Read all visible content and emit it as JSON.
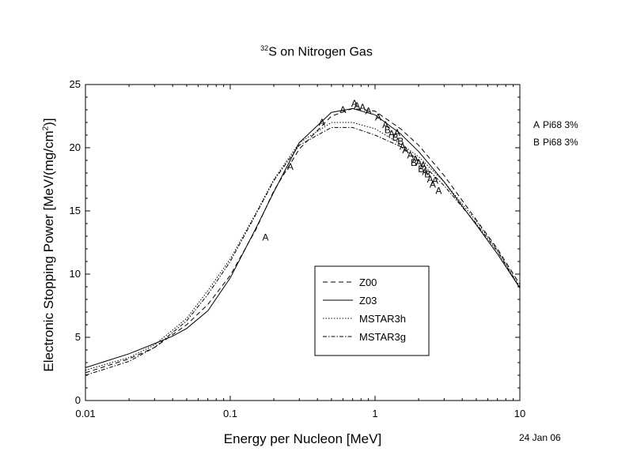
{
  "chart_data": {
    "type": "line",
    "title_sup": "32",
    "title_main": "S on Nitrogen Gas",
    "xlabel": "Energy per Nucleon [MeV]",
    "ylabel_main": "Electronic Stopping Power [MeV/(mg/cm",
    "ylabel_sup": "2",
    "ylabel_end": ")]",
    "xscale": "log",
    "xlim": [
      0.01,
      10
    ],
    "ylim": [
      0,
      25
    ],
    "x_ticks": [
      {
        "v": 0.01,
        "label": "0.01"
      },
      {
        "v": 0.1,
        "label": "0.1"
      },
      {
        "v": 1,
        "label": "1"
      },
      {
        "v": 10,
        "label": "10"
      }
    ],
    "y_ticks": [
      {
        "v": 0,
        "label": "0"
      },
      {
        "v": 5,
        "label": "5"
      },
      {
        "v": 10,
        "label": "10"
      },
      {
        "v": 15,
        "label": "15"
      },
      {
        "v": 20,
        "label": "20"
      },
      {
        "v": 25,
        "label": "25"
      }
    ],
    "grid": false,
    "legend_position": "center-right",
    "series": [
      {
        "name": "Z00",
        "dash": "6,4",
        "x": [
          0.01,
          0.02,
          0.03,
          0.05,
          0.07,
          0.1,
          0.15,
          0.2,
          0.3,
          0.5,
          0.7,
          1,
          1.5,
          2,
          3,
          5,
          7,
          10
        ],
        "y": [
          2.2,
          3.3,
          4.2,
          6.0,
          7.6,
          9.9,
          13.5,
          16.6,
          19.9,
          22.5,
          23.1,
          22.9,
          21.5,
          20.2,
          17.8,
          14.3,
          12.0,
          9.2
        ]
      },
      {
        "name": "Z03",
        "dash": "",
        "x": [
          0.01,
          0.02,
          0.03,
          0.04,
          0.05,
          0.07,
          0.1,
          0.15,
          0.2,
          0.3,
          0.5,
          0.7,
          1,
          1.5,
          2,
          3,
          5,
          7,
          10
        ],
        "y": [
          2.6,
          3.7,
          4.5,
          5.1,
          5.7,
          7.1,
          9.7,
          13.6,
          16.5,
          20.4,
          22.8,
          23.1,
          22.6,
          21.1,
          19.7,
          17.3,
          13.9,
          11.6,
          8.9
        ]
      },
      {
        "name": "MSTAR3h",
        "dash": "1.5,2",
        "x": [
          0.01,
          0.02,
          0.03,
          0.05,
          0.07,
          0.1,
          0.15,
          0.2,
          0.3,
          0.5,
          0.7,
          1,
          1.5,
          2,
          3,
          5,
          7,
          10
        ],
        "y": [
          2.4,
          3.4,
          4.4,
          6.5,
          8.7,
          11.2,
          14.8,
          17.5,
          20.4,
          22.0,
          22.0,
          21.5,
          20.3,
          19.3,
          17.3,
          14.2,
          11.9,
          9.0
        ]
      },
      {
        "name": "MSTAR3g",
        "dash": "5,2,1.5,2",
        "x": [
          0.01,
          0.02,
          0.03,
          0.05,
          0.07,
          0.1,
          0.15,
          0.2,
          0.3,
          0.5,
          0.7,
          1,
          1.5,
          2,
          3,
          5,
          7,
          10
        ],
        "y": [
          2.0,
          3.1,
          4.2,
          6.3,
          8.4,
          11.0,
          14.7,
          17.4,
          20.2,
          21.6,
          21.6,
          21.0,
          20.1,
          19.0,
          17.0,
          14.0,
          11.8,
          8.9
        ]
      }
    ],
    "points": [
      {
        "label": "A",
        "x": 0.175,
        "y": 12.9
      },
      {
        "label": "A",
        "x": 0.26,
        "y": 18.5
      },
      {
        "label": "A",
        "x": 0.43,
        "y": 22.0
      },
      {
        "label": "A",
        "x": 0.6,
        "y": 23.0
      },
      {
        "label": "A",
        "x": 0.72,
        "y": 23.5
      },
      {
        "label": "A",
        "x": 0.75,
        "y": 23.3
      },
      {
        "label": "A",
        "x": 0.82,
        "y": 23.2
      },
      {
        "label": "A",
        "x": 0.9,
        "y": 22.9
      },
      {
        "label": "A",
        "x": 1.05,
        "y": 22.4
      },
      {
        "label": "A",
        "x": 1.18,
        "y": 21.8
      },
      {
        "label": "B",
        "x": 1.22,
        "y": 21.4
      },
      {
        "label": "A",
        "x": 1.3,
        "y": 21.1
      },
      {
        "label": "B",
        "x": 1.38,
        "y": 20.8
      },
      {
        "label": "A",
        "x": 1.42,
        "y": 21.2
      },
      {
        "label": "B",
        "x": 1.5,
        "y": 20.5
      },
      {
        "label": "A",
        "x": 1.55,
        "y": 20.1
      },
      {
        "label": "A",
        "x": 1.62,
        "y": 19.8
      },
      {
        "label": "A",
        "x": 1.75,
        "y": 19.4
      },
      {
        "label": "B",
        "x": 1.85,
        "y": 18.8
      },
      {
        "label": "A",
        "x": 1.9,
        "y": 19.1
      },
      {
        "label": "A",
        "x": 2.0,
        "y": 18.8
      },
      {
        "label": "B",
        "x": 2.08,
        "y": 18.3
      },
      {
        "label": "A",
        "x": 2.15,
        "y": 18.6
      },
      {
        "label": "A",
        "x": 2.22,
        "y": 18.1
      },
      {
        "label": "B",
        "x": 2.3,
        "y": 17.9
      },
      {
        "label": "A",
        "x": 2.4,
        "y": 17.5
      },
      {
        "label": "A",
        "x": 2.5,
        "y": 17.1
      },
      {
        "label": "A",
        "x": 2.6,
        "y": 17.4
      },
      {
        "label": "A",
        "x": 2.75,
        "y": 16.6
      }
    ],
    "side_legend": [
      {
        "mark": "A",
        "text": "Pi68  3%"
      },
      {
        "mark": "B",
        "text": "Pi68  3%"
      }
    ]
  },
  "date_label": "24 Jan 06"
}
